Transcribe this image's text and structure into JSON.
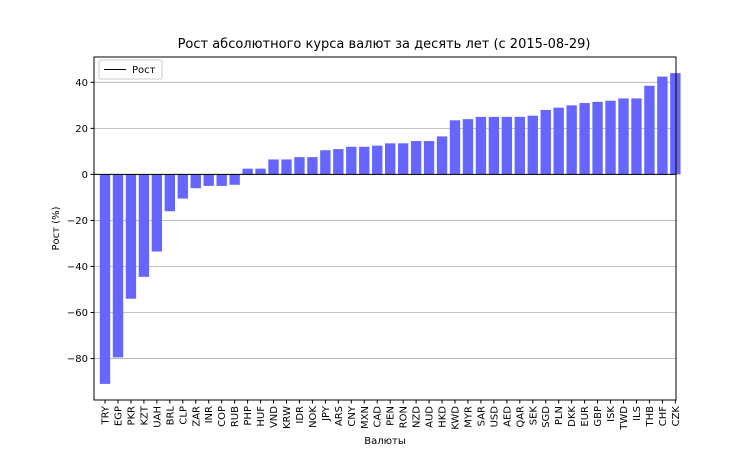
{
  "chart_data": {
    "type": "bar",
    "title": "Рост абсолютного курса валют за десять лет (с 2015-08-29)",
    "xlabel": "Валюты",
    "ylabel": "Рост (%)",
    "ylim": [
      -98,
      51
    ],
    "yticks": [
      -80,
      -60,
      -40,
      -20,
      0,
      20,
      40
    ],
    "grid": "y",
    "legend": {
      "placement": "top-left",
      "entries": [
        "Рост"
      ]
    },
    "bar_color": "#6666ff",
    "categories": [
      "TRY",
      "EGP",
      "PKR",
      "KZT",
      "UAH",
      "BRL",
      "CLP",
      "ZAR",
      "INR",
      "COP",
      "RUB",
      "PHP",
      "HUF",
      "VND",
      "KRW",
      "IDR",
      "NOK",
      "JPY",
      "ARS",
      "CNY",
      "MXN",
      "CAD",
      "PEN",
      "RON",
      "NZD",
      "AUD",
      "HKD",
      "KWD",
      "MYR",
      "SAR",
      "USD",
      "AED",
      "QAR",
      "SEK",
      "SGD",
      "PLN",
      "DKK",
      "EUR",
      "GBP",
      "ISK",
      "TWD",
      "ILS",
      "THB",
      "CHF",
      "CZK"
    ],
    "values": [
      -91,
      -79.5,
      -54,
      -44.5,
      -33.5,
      -16,
      -10.5,
      -6,
      -5,
      -5,
      -4.5,
      2.5,
      2.5,
      6.5,
      6.5,
      7.5,
      7.5,
      10.5,
      11,
      12,
      12,
      12.5,
      13.5,
      13.5,
      14.5,
      14.5,
      16.5,
      23.5,
      24,
      25,
      25,
      25,
      25,
      25.5,
      28,
      29,
      30,
      31,
      31.5,
      32,
      33,
      33,
      38.5,
      42.5,
      44
    ]
  }
}
